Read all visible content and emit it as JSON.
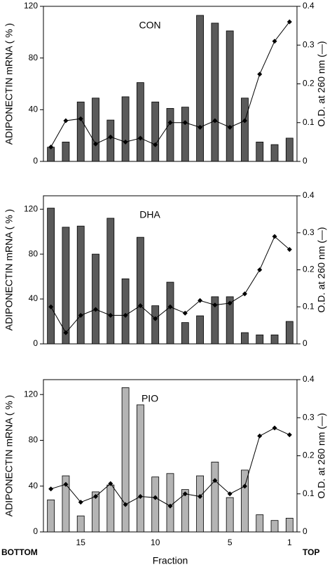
{
  "chart_data": [
    {
      "type": "bar_line",
      "title": "CON",
      "ylabel": "ADIPONECTIN mRNA ( % )",
      "y2label": "O.D. at 260 nm (—)",
      "series": [
        {
          "color": "#5a5a5a",
          "values": [
            11,
            15,
            46,
            49,
            32,
            50,
            61,
            46,
            41,
            42,
            113,
            107,
            101,
            49,
            15,
            13,
            18
          ]
        },
        {
          "color": "#000000",
          "axis": "y2",
          "values": [
            0.037,
            0.105,
            0.11,
            0.045,
            0.063,
            0.05,
            0.06,
            0.043,
            0.1,
            0.1,
            0.088,
            0.105,
            0.088,
            0.105,
            0.225,
            0.31,
            0.36
          ]
        }
      ],
      "ylim": [
        0,
        120
      ],
      "yticks": [
        0,
        40,
        80,
        120
      ],
      "y2lim": [
        0,
        0.4
      ],
      "y2ticks": [
        0,
        0.1,
        0.2,
        0.3,
        0.4
      ]
    },
    {
      "type": "bar_line",
      "title": "DHA",
      "ylabel": "ADIPONECTIN mRNA ( % )",
      "y2label": "O.D. at 260 nm (—)",
      "series": [
        {
          "color": "#5a5a5a",
          "values": [
            121,
            104,
            105,
            80,
            112,
            58,
            95,
            34,
            55,
            19,
            25,
            42,
            42,
            10,
            8,
            8,
            20
          ]
        },
        {
          "color": "#000000",
          "axis": "y2",
          "values": [
            0.1,
            0.03,
            0.077,
            0.093,
            0.077,
            0.077,
            0.103,
            0.068,
            0.1,
            0.083,
            0.117,
            0.105,
            0.11,
            0.135,
            0.2,
            0.29,
            0.255
          ]
        }
      ],
      "ylim": [
        0,
        132
      ],
      "yticks": [
        0,
        40,
        80,
        120
      ],
      "y2lim": [
        0,
        0.4
      ],
      "y2ticks": [
        0,
        0.1,
        0.2,
        0.3,
        0.4
      ]
    },
    {
      "type": "bar_line",
      "title": "PIO",
      "ylabel": "ADIPONECTIN mRNA ( % )",
      "y2label": "O.D. at 260 nm (—)",
      "xlabel": "Fraction",
      "left_note": "BOTTOM",
      "right_note": "TOP",
      "categories": [
        null,
        null,
        "15",
        null,
        null,
        null,
        null,
        "10",
        null,
        null,
        null,
        null,
        "5",
        null,
        null,
        null,
        "1"
      ],
      "series": [
        {
          "color": "#b4b4b4",
          "values": [
            28,
            49,
            14,
            35,
            41,
            126,
            111,
            48,
            51,
            37,
            49,
            61,
            30,
            54,
            15,
            10,
            12
          ]
        },
        {
          "color": "#000000",
          "axis": "y2",
          "values": [
            0.113,
            0.125,
            0.078,
            0.093,
            0.127,
            0.072,
            0.093,
            0.09,
            0.068,
            0.1,
            0.093,
            0.135,
            0.1,
            0.12,
            0.252,
            0.273,
            0.255
          ]
        }
      ],
      "ylim": [
        0,
        133
      ],
      "yticks": [
        0,
        40,
        80,
        120
      ],
      "y2lim": [
        0,
        0.4
      ],
      "y2ticks": [
        0,
        0.1,
        0.2,
        0.3,
        0.4
      ]
    }
  ]
}
